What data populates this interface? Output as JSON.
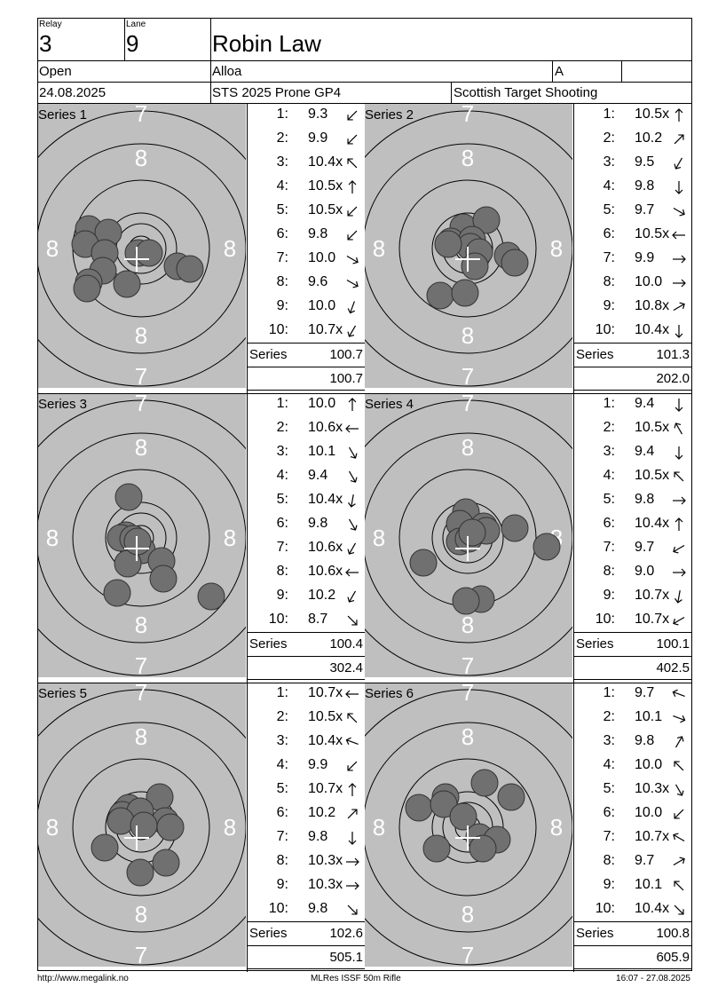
{
  "header": {
    "relay_label": "Relay",
    "relay_value": "3",
    "lane_label": "Lane",
    "lane_value": "9",
    "shooter_name": "Robin Law",
    "class": "Open",
    "club": "Alloa",
    "division": "A",
    "date": "24.08.2025",
    "event": "STS 2025 Prone GP4",
    "organizer": "Scottish Target Shooting"
  },
  "target_labels": {
    "ring7": "7",
    "ring8": "8"
  },
  "series": [
    {
      "label": "Series 1",
      "shots": [
        {
          "n": "1:",
          "v": "9.3",
          "dir": 225
        },
        {
          "n": "2:",
          "v": "9.9",
          "dir": 225
        },
        {
          "n": "3:",
          "v": "10.4x",
          "dir": 315
        },
        {
          "n": "4:",
          "v": "10.5x",
          "dir": 0
        },
        {
          "n": "5:",
          "v": "10.5x",
          "dir": 225
        },
        {
          "n": "6:",
          "v": "9.8",
          "dir": 225
        },
        {
          "n": "7:",
          "v": "10.0",
          "dir": 120
        },
        {
          "n": "8:",
          "v": "9.6",
          "dir": 120
        },
        {
          "n": "9:",
          "v": "10.0",
          "dir": 200
        },
        {
          "n": "10:",
          "v": "10.7x",
          "dir": 210
        }
      ],
      "series_label": "Series",
      "series_total": "100.7",
      "running_total": "100.7",
      "hits": [
        [
          100,
          258
        ],
        [
          122,
          262
        ],
        [
          96,
          275
        ],
        [
          118,
          285
        ],
        [
          156,
          285
        ],
        [
          168,
          285
        ],
        [
          200,
          300
        ],
        [
          214,
          303
        ],
        [
          116,
          305
        ],
        [
          100,
          318
        ],
        [
          143,
          320
        ],
        [
          98,
          325
        ]
      ]
    },
    {
      "label": "Series 2",
      "shots": [
        {
          "n": "1:",
          "v": "10.5x",
          "dir": 0
        },
        {
          "n": "2:",
          "v": "10.2",
          "dir": 45
        },
        {
          "n": "3:",
          "v": "9.5",
          "dir": 210
        },
        {
          "n": "4:",
          "v": "9.8",
          "dir": 180
        },
        {
          "n": "5:",
          "v": "9.7",
          "dir": 120
        },
        {
          "n": "6:",
          "v": "10.5x",
          "dir": 270
        },
        {
          "n": "7:",
          "v": "9.9",
          "dir": 90
        },
        {
          "n": "8:",
          "v": "10.0",
          "dir": 90
        },
        {
          "n": "9:",
          "v": "10.8x",
          "dir": 60
        },
        {
          "n": "10:",
          "v": "10.4x",
          "dir": 180
        }
      ],
      "series_label": "Series",
      "series_total": "101.3",
      "running_total": "202.0",
      "hits": [
        [
          522,
          256
        ],
        [
          548,
          248
        ],
        [
          508,
          272
        ],
        [
          532,
          270
        ],
        [
          530,
          278
        ],
        [
          540,
          284
        ],
        [
          572,
          288
        ],
        [
          580,
          296
        ],
        [
          535,
          300
        ],
        [
          496,
          333
        ],
        [
          524,
          330
        ],
        [
          505,
          275
        ]
      ]
    },
    {
      "label": "Series 3",
      "shots": [
        {
          "n": "1:",
          "v": "10.0",
          "dir": 0
        },
        {
          "n": "2:",
          "v": "10.6x",
          "dir": 270
        },
        {
          "n": "3:",
          "v": "10.1",
          "dir": 150
        },
        {
          "n": "4:",
          "v": "9.4",
          "dir": 150
        },
        {
          "n": "5:",
          "v": "10.4x",
          "dir": 190
        },
        {
          "n": "6:",
          "v": "9.8",
          "dir": 150
        },
        {
          "n": "7:",
          "v": "10.6x",
          "dir": 210
        },
        {
          "n": "8:",
          "v": "10.6x",
          "dir": 270
        },
        {
          "n": "9:",
          "v": "10.2",
          "dir": 210
        },
        {
          "n": "10:",
          "v": "8.7",
          "dir": 135
        }
      ],
      "series_label": "Series",
      "series_total": "100.4",
      "running_total": "302.4",
      "hits": [
        [
          145,
          560
        ],
        [
          142,
          603
        ],
        [
          136,
          606
        ],
        [
          150,
          607
        ],
        [
          160,
          620
        ],
        [
          182,
          632
        ],
        [
          144,
          635
        ],
        [
          184,
          652
        ],
        [
          132,
          668
        ],
        [
          238,
          672
        ],
        [
          155,
          610
        ]
      ]
    },
    {
      "label": "Series 4",
      "shots": [
        {
          "n": "1:",
          "v": "9.4",
          "dir": 180
        },
        {
          "n": "2:",
          "v": "10.5x",
          "dir": 330
        },
        {
          "n": "3:",
          "v": "9.4",
          "dir": 180
        },
        {
          "n": "4:",
          "v": "10.5x",
          "dir": 315
        },
        {
          "n": "5:",
          "v": "9.8",
          "dir": 90
        },
        {
          "n": "6:",
          "v": "10.4x",
          "dir": 0
        },
        {
          "n": "7:",
          "v": "9.7",
          "dir": 240
        },
        {
          "n": "8:",
          "v": "9.0",
          "dir": 90
        },
        {
          "n": "9:",
          "v": "10.7x",
          "dir": 190
        },
        {
          "n": "10:",
          "v": "10.7x",
          "dir": 240
        }
      ],
      "series_label": "Series",
      "series_total": "100.1",
      "running_total": "402.5",
      "hits": [
        [
          525,
          577
        ],
        [
          518,
          590
        ],
        [
          545,
          593
        ],
        [
          580,
          595
        ],
        [
          548,
          598
        ],
        [
          518,
          610
        ],
        [
          528,
          607
        ],
        [
          532,
          600
        ],
        [
          616,
          616
        ],
        [
          477,
          634
        ],
        [
          542,
          675
        ],
        [
          525,
          677
        ]
      ]
    },
    {
      "label": "Series 5",
      "shots": [
        {
          "n": "1:",
          "v": "10.7x",
          "dir": 270
        },
        {
          "n": "2:",
          "v": "10.5x",
          "dir": 315
        },
        {
          "n": "3:",
          "v": "10.4x",
          "dir": 290
        },
        {
          "n": "4:",
          "v": "9.9",
          "dir": 225
        },
        {
          "n": "5:",
          "v": "10.7x",
          "dir": 0
        },
        {
          "n": "6:",
          "v": "10.2",
          "dir": 45
        },
        {
          "n": "7:",
          "v": "9.8",
          "dir": 180
        },
        {
          "n": "8:",
          "v": "10.3x",
          "dir": 90
        },
        {
          "n": "9:",
          "v": "10.3x",
          "dir": 90
        },
        {
          "n": "10:",
          "v": "9.8",
          "dir": 135
        }
      ],
      "series_label": "Series",
      "series_total": "102.6",
      "running_total": "505.1",
      "hits": [
        [
          180,
          898
        ],
        [
          145,
          910
        ],
        [
          138,
          918
        ],
        [
          158,
          914
        ],
        [
          186,
          925
        ],
        [
          192,
          932
        ],
        [
          136,
          925
        ],
        [
          162,
          930
        ],
        [
          118,
          955
        ],
        [
          187,
          972
        ],
        [
          158,
          983
        ]
      ]
    },
    {
      "label": "Series 6",
      "shots": [
        {
          "n": "1:",
          "v": "9.7",
          "dir": 290
        },
        {
          "n": "2:",
          "v": "10.1",
          "dir": 110
        },
        {
          "n": "3:",
          "v": "9.8",
          "dir": 30
        },
        {
          "n": "4:",
          "v": "10.0",
          "dir": 315
        },
        {
          "n": "5:",
          "v": "10.3x",
          "dir": 150
        },
        {
          "n": "6:",
          "v": "10.0",
          "dir": 225
        },
        {
          "n": "7:",
          "v": "10.7x",
          "dir": 300
        },
        {
          "n": "8:",
          "v": "9.7",
          "dir": 60
        },
        {
          "n": "9:",
          "v": "10.1",
          "dir": 315
        },
        {
          "n": "10:",
          "v": "10.4x",
          "dir": 135
        }
      ],
      "series_label": "Series",
      "series_total": "100.8",
      "running_total": "605.9",
      "hits": [
        [
          546,
          882
        ],
        [
          502,
          898
        ],
        [
          576,
          898
        ],
        [
          472,
          910
        ],
        [
          500,
          906
        ],
        [
          522,
          920
        ],
        [
          540,
          943
        ],
        [
          560,
          946
        ],
        [
          492,
          956
        ],
        [
          544,
          956
        ]
      ]
    }
  ],
  "footer": {
    "url": "http://www.megalink.no",
    "software": "MLRes ISSF 50m Rifle",
    "timestamp": "16:07 - 27.08.2025"
  },
  "colors": {
    "target_bg": "#bfbfbf",
    "hit": "#707070",
    "ring": "#000000",
    "number": "#ffffff",
    "lines": "#000000"
  }
}
